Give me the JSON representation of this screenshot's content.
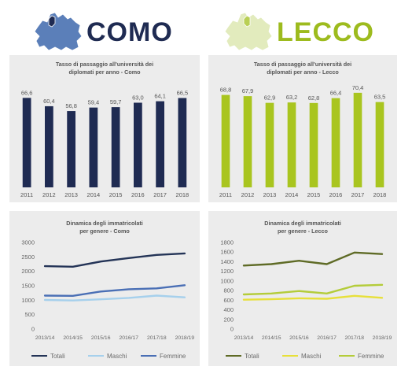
{
  "headers": {
    "como": {
      "title": "COMO",
      "color": "#1f2b52",
      "map_fill": "#5b7fb9",
      "map_highlight": "#1f2b52"
    },
    "lecco": {
      "title": "LECCO",
      "color": "#9dbb1e",
      "map_fill": "#e2ebbd",
      "map_highlight": "#b9cf55"
    }
  },
  "chart_data": [
    {
      "type": "bar",
      "title": "Tasso di passaggio all'università dei diplomati per anno - Como",
      "title_lines": [
        "Tasso di passaggio all'università dei",
        "diplomati per anno - Como"
      ],
      "categories": [
        "2011",
        "2012",
        "2013",
        "2014",
        "2015",
        "2016",
        "2017",
        "2018"
      ],
      "values": [
        66.6,
        60.4,
        56.8,
        59.4,
        59.7,
        63.0,
        64.1,
        66.5
      ],
      "value_labels": [
        "66,6",
        "60,4",
        "56,8",
        "59,4",
        "59,7",
        "63,0",
        "64,1",
        "66,5"
      ],
      "ylim": [
        0,
        75
      ],
      "color": "#1f2b52",
      "axis_visible": false
    },
    {
      "type": "bar",
      "title": "Tasso di passaggio all'università dei diplomati per anno - Lecco",
      "title_lines": [
        "Tasso di passaggio all'università dei",
        "diplomati per anno - Lecco"
      ],
      "categories": [
        "2011",
        "2012",
        "2013",
        "2014",
        "2015",
        "2016",
        "2017",
        "2018"
      ],
      "values": [
        68.8,
        67.9,
        62.9,
        63.2,
        62.8,
        66.4,
        70.4,
        63.5
      ],
      "value_labels": [
        "68,8",
        "67,9",
        "62,9",
        "63,2",
        "62,8",
        "66,4",
        "70,4",
        "63,5"
      ],
      "ylim": [
        0,
        75
      ],
      "color": "#a9c51f",
      "axis_visible": false
    },
    {
      "type": "line",
      "title": "Dinamica degli immatricolati per genere - Como",
      "title_lines": [
        "Dinamica degli immatricolati",
        "per genere - Como"
      ],
      "categories": [
        "2013/14",
        "2014/15",
        "2015/16",
        "2016/17",
        "2017/18",
        "2018/19"
      ],
      "ylim": [
        0,
        3000
      ],
      "yticks": [
        "0",
        "500",
        "1000",
        "1500",
        "2000",
        "2500",
        "3000"
      ],
      "legend_position": "bottom",
      "series": [
        {
          "name": "Totali",
          "values": [
            2180,
            2160,
            2340,
            2460,
            2570,
            2620
          ],
          "color": "#243457"
        },
        {
          "name": "Maschi",
          "values": [
            1010,
            990,
            1030,
            1080,
            1160,
            1100
          ],
          "color": "#a6d0ec"
        },
        {
          "name": "Femmine",
          "values": [
            1160,
            1150,
            1300,
            1380,
            1410,
            1520
          ],
          "color": "#4a6fb5"
        }
      ]
    },
    {
      "type": "line",
      "title": "Dinamica degli immatricolati per genere - Lecco",
      "title_lines": [
        "Dinamica degli immatricolati",
        "per genere - Lecco"
      ],
      "categories": [
        "2013/14",
        "2014/15",
        "2015/16",
        "2016/17",
        "2017/18",
        "2018/19"
      ],
      "ylim": [
        0,
        1800
      ],
      "yticks": [
        "0",
        "200",
        "400",
        "600",
        "800",
        "1000",
        "1200",
        "1400",
        "1600",
        "1800"
      ],
      "legend_position": "bottom",
      "series": [
        {
          "name": "Totali",
          "values": [
            1320,
            1350,
            1420,
            1350,
            1590,
            1560
          ],
          "color": "#5f6b26"
        },
        {
          "name": "Maschi",
          "values": [
            610,
            620,
            640,
            630,
            690,
            650
          ],
          "color": "#e7e03a"
        },
        {
          "name": "Femmine",
          "values": [
            720,
            740,
            790,
            740,
            900,
            920
          ],
          "color": "#b4cc3a"
        }
      ]
    }
  ]
}
